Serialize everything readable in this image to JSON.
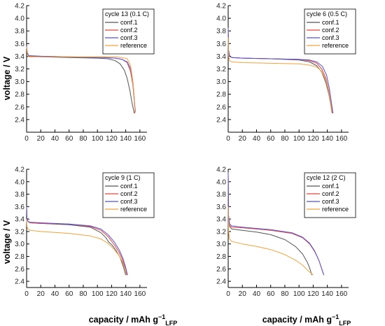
{
  "figure": {
    "ylabel": "voltage / V",
    "xlabel_main": "capacity / mAh g",
    "xlabel_sup": "−1",
    "xlabel_sub": "LFP"
  },
  "chart_data": [
    {
      "type": "line",
      "legend_title": "cycle 13 (0.1 C)",
      "legend_position": "top-right",
      "xlim": [
        0,
        170
      ],
      "ylim": [
        2.2,
        4.2
      ],
      "xticks": [
        0,
        20,
        40,
        60,
        80,
        100,
        120,
        140,
        160
      ],
      "yticks": [
        2.4,
        2.6,
        2.8,
        3.0,
        3.2,
        3.4,
        3.6,
        3.8,
        4.0,
        4.2
      ],
      "series": [
        {
          "name": "conf.1",
          "color": "#555555",
          "x": [
            0,
            1,
            3,
            20,
            60,
            100,
            115,
            125,
            132,
            138,
            142,
            146,
            149,
            151,
            152
          ],
          "y": [
            3.55,
            3.45,
            3.4,
            3.39,
            3.38,
            3.37,
            3.36,
            3.33,
            3.28,
            3.18,
            3.05,
            2.85,
            2.65,
            2.55,
            2.5
          ]
        },
        {
          "name": "conf.2",
          "color": "#e8443a",
          "x": [
            0,
            1,
            3,
            20,
            60,
            110,
            125,
            135,
            142,
            147,
            150,
            152,
            153
          ],
          "y": [
            3.55,
            3.45,
            3.4,
            3.4,
            3.39,
            3.38,
            3.37,
            3.35,
            3.3,
            3.15,
            2.95,
            2.7,
            2.5
          ]
        },
        {
          "name": "conf.3",
          "color": "#5552d8",
          "x": [
            0,
            1,
            3,
            20,
            60,
            110,
            125,
            135,
            142,
            147,
            150,
            152,
            153.5
          ],
          "y": [
            3.56,
            3.46,
            3.41,
            3.4,
            3.39,
            3.38,
            3.37,
            3.35,
            3.31,
            3.2,
            3.0,
            2.75,
            2.52
          ]
        },
        {
          "name": "reference",
          "color": "#f2a23c",
          "x": [
            0,
            1,
            3,
            20,
            60,
            110,
            125,
            135,
            142,
            147,
            150,
            152,
            153
          ],
          "y": [
            3.55,
            3.44,
            3.39,
            3.39,
            3.39,
            3.39,
            3.39,
            3.38,
            3.36,
            3.25,
            3.0,
            2.75,
            2.52
          ]
        }
      ]
    },
    {
      "type": "line",
      "legend_title": "cycle 6 (0.5 C)",
      "legend_position": "top-right",
      "xlim": [
        0,
        170
      ],
      "ylim": [
        2.2,
        4.2
      ],
      "xticks": [
        0,
        20,
        40,
        60,
        80,
        100,
        120,
        140,
        160
      ],
      "yticks": [
        2.4,
        2.6,
        2.8,
        3.0,
        3.2,
        3.4,
        3.6,
        3.8,
        4.0,
        4.2
      ],
      "series": [
        {
          "name": "conf.1",
          "color": "#555555",
          "x": [
            0,
            0.5,
            2,
            5,
            20,
            60,
            100,
            115,
            125,
            132,
            138,
            142,
            145,
            146.5
          ],
          "y": [
            3.85,
            3.5,
            3.4,
            3.38,
            3.37,
            3.36,
            3.34,
            3.31,
            3.25,
            3.15,
            2.98,
            2.8,
            2.62,
            2.5
          ]
        },
        {
          "name": "conf.2",
          "color": "#e8443a",
          "x": [
            0,
            0.5,
            2,
            5,
            20,
            60,
            100,
            115,
            125,
            132,
            138,
            142,
            145,
            147.5
          ],
          "y": [
            3.85,
            3.5,
            3.4,
            3.38,
            3.37,
            3.36,
            3.35,
            3.33,
            3.29,
            3.2,
            3.05,
            2.85,
            2.65,
            2.5
          ]
        },
        {
          "name": "conf.3",
          "color": "#5552d8",
          "x": [
            0,
            0.5,
            2,
            5,
            20,
            60,
            100,
            115,
            125,
            133,
            139,
            143,
            146,
            148
          ],
          "y": [
            3.85,
            3.5,
            3.4,
            3.38,
            3.37,
            3.36,
            3.35,
            3.34,
            3.31,
            3.24,
            3.1,
            2.88,
            2.65,
            2.5
          ]
        },
        {
          "name": "reference",
          "color": "#f2a23c",
          "x": [
            0,
            0.5,
            2,
            5,
            20,
            60,
            100,
            115,
            125,
            132,
            138,
            142,
            145,
            146.5
          ],
          "y": [
            3.7,
            3.4,
            3.33,
            3.31,
            3.3,
            3.29,
            3.28,
            3.26,
            3.23,
            3.16,
            3.02,
            2.82,
            2.63,
            2.5
          ]
        }
      ]
    },
    {
      "type": "line",
      "legend_title": "cycle 9 (1 C)",
      "legend_position": "top-right",
      "xlim": [
        0,
        170
      ],
      "ylim": [
        2.3,
        4.2
      ],
      "xticks": [
        0,
        20,
        40,
        60,
        80,
        100,
        120,
        140,
        160
      ],
      "yticks": [
        2.4,
        2.6,
        2.8,
        3.0,
        3.2,
        3.4,
        3.6,
        3.8,
        4.0,
        4.2
      ],
      "series": [
        {
          "name": "conf.1",
          "color": "#555555",
          "x": [
            0,
            0.5,
            2,
            5,
            20,
            60,
            90,
            105,
            112,
            116,
            120,
            126,
            132,
            137,
            140
          ],
          "y": [
            3.6,
            3.42,
            3.36,
            3.34,
            3.33,
            3.31,
            3.27,
            3.18,
            3.1,
            3.03,
            2.99,
            2.9,
            2.78,
            2.62,
            2.5
          ]
        },
        {
          "name": "conf.2",
          "color": "#e8443a",
          "x": [
            0,
            0.5,
            2,
            5,
            20,
            60,
            90,
            105,
            115,
            123,
            130,
            135,
            139,
            141.5
          ],
          "y": [
            3.6,
            3.42,
            3.36,
            3.34,
            3.33,
            3.32,
            3.28,
            3.22,
            3.12,
            3.0,
            2.88,
            2.76,
            2.62,
            2.5
          ]
        },
        {
          "name": "conf.3",
          "color": "#5552d8",
          "x": [
            0,
            0.5,
            2,
            5,
            20,
            60,
            90,
            105,
            115,
            124,
            131,
            136,
            140,
            142.5
          ],
          "y": [
            3.6,
            3.42,
            3.36,
            3.35,
            3.34,
            3.32,
            3.29,
            3.24,
            3.15,
            3.03,
            2.9,
            2.77,
            2.62,
            2.5
          ]
        },
        {
          "name": "reference",
          "color": "#f2a23c",
          "x": [
            0,
            0.5,
            2,
            5,
            20,
            60,
            90,
            105,
            115,
            123,
            130,
            135,
            139,
            141
          ],
          "y": [
            3.4,
            3.28,
            3.24,
            3.22,
            3.2,
            3.17,
            3.13,
            3.08,
            3.01,
            2.92,
            2.82,
            2.72,
            2.6,
            2.5
          ]
        }
      ]
    },
    {
      "type": "line",
      "legend_title": "cycle 12 (2 C)",
      "legend_position": "top-right",
      "xlim": [
        0,
        170
      ],
      "ylim": [
        2.3,
        4.2
      ],
      "xticks": [
        0,
        20,
        40,
        60,
        80,
        100,
        120,
        140,
        160
      ],
      "yticks": [
        2.4,
        2.6,
        2.8,
        3.0,
        3.2,
        3.4,
        3.6,
        3.8,
        4.0,
        4.2
      ],
      "series": [
        {
          "name": "conf.1",
          "color": "#555555",
          "x": [
            0,
            0.5,
            2,
            5,
            20,
            40,
            60,
            80,
            95,
            105,
            112,
            116,
            118
          ],
          "y": [
            4.1,
            3.45,
            3.28,
            3.24,
            3.22,
            3.19,
            3.15,
            3.07,
            2.96,
            2.84,
            2.7,
            2.58,
            2.5
          ]
        },
        {
          "name": "conf.2",
          "color": "#e8443a",
          "x": [
            0,
            0.5,
            2,
            5,
            20,
            60,
            90,
            105,
            115,
            122,
            128,
            132,
            135
          ],
          "y": [
            4.15,
            3.45,
            3.3,
            3.27,
            3.26,
            3.22,
            3.17,
            3.1,
            3.0,
            2.88,
            2.74,
            2.6,
            2.5
          ]
        },
        {
          "name": "conf.3",
          "color": "#5552d8",
          "x": [
            0,
            0.5,
            2,
            5,
            20,
            60,
            90,
            105,
            115,
            122,
            128,
            132,
            135
          ],
          "y": [
            4.15,
            3.46,
            3.32,
            3.29,
            3.27,
            3.23,
            3.18,
            3.11,
            3.01,
            2.89,
            2.74,
            2.6,
            2.5
          ]
        },
        {
          "name": "reference",
          "color": "#f2a23c",
          "x": [
            0,
            0.5,
            2,
            5,
            20,
            40,
            60,
            80,
            95,
            105,
            112,
            117,
            120
          ],
          "y": [
            3.6,
            3.2,
            3.08,
            3.04,
            3.0,
            2.96,
            2.91,
            2.83,
            2.74,
            2.66,
            2.58,
            2.53,
            2.5
          ]
        }
      ]
    }
  ]
}
